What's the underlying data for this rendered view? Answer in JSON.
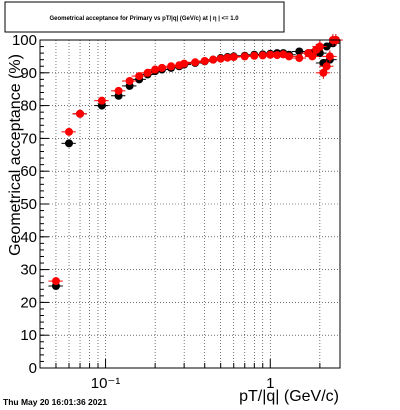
{
  "title": "Geometrical acceptance for Primary vs pT/|q| (GeV/c)  at | η | <= 1.0",
  "timestamp": "Thu May 20 16:01:36 2021",
  "colors": {
    "series_black": "#000000",
    "series_red": "#ff0000",
    "error_bar": "#cc0000"
  },
  "chart_data": {
    "type": "scatter",
    "xlabel": "pT/|q| (GeV/c)",
    "ylabel": "Geometrical acceptance (%)",
    "x_scale": "log",
    "xlim": [
      0.04,
      2.65
    ],
    "ylim": [
      0,
      100
    ],
    "y_ticks": [
      0,
      10,
      20,
      30,
      40,
      50,
      60,
      70,
      80,
      90,
      100
    ],
    "x_ticks": [
      {
        "value": 0.1,
        "label": "10⁻¹"
      },
      {
        "value": 1,
        "label": "1"
      }
    ],
    "grid": true,
    "series": [
      {
        "color": "#000000",
        "x": [
          0.05,
          0.06,
          0.07,
          0.095,
          0.12,
          0.14,
          0.16,
          0.18,
          0.2,
          0.22,
          0.25,
          0.28,
          0.3,
          0.35,
          0.4,
          0.45,
          0.5,
          0.55,
          0.6,
          0.7,
          0.8,
          0.9,
          1.0,
          1.1,
          1.2,
          1.3,
          1.5,
          1.7,
          1.8,
          1.9,
          2.0,
          2.1,
          2.2,
          2.3,
          2.4,
          2.5
        ],
        "y": [
          25,
          68.5,
          77.5,
          80,
          83,
          86,
          88,
          89.5,
          90.5,
          91,
          91.5,
          92,
          92.5,
          93,
          93.5,
          94,
          94.5,
          94.8,
          95,
          95.2,
          95.5,
          95.6,
          95.8,
          96,
          96,
          95.5,
          96.5,
          96,
          96,
          97,
          96,
          93,
          98,
          94,
          99,
          100
        ]
      },
      {
        "color": "#ff0000",
        "x": [
          0.05,
          0.06,
          0.07,
          0.095,
          0.12,
          0.14,
          0.16,
          0.18,
          0.2,
          0.22,
          0.25,
          0.28,
          0.3,
          0.35,
          0.4,
          0.45,
          0.5,
          0.55,
          0.6,
          0.7,
          0.8,
          0.9,
          1.0,
          1.1,
          1.2,
          1.3,
          1.5,
          1.7,
          1.8,
          1.9,
          2.0,
          2.1,
          2.2,
          2.3,
          2.4,
          2.5
        ],
        "y": [
          26.5,
          72,
          77.5,
          81.5,
          84.5,
          87.5,
          89,
          90,
          91,
          91.5,
          92,
          92.3,
          92.8,
          93.2,
          93.6,
          94,
          94.3,
          94.6,
          94.8,
          95,
          95.2,
          95.3,
          95.5,
          95.4,
          95.6,
          95,
          94.5,
          96,
          95,
          97,
          98,
          90,
          92,
          95,
          100,
          100
        ]
      }
    ]
  }
}
